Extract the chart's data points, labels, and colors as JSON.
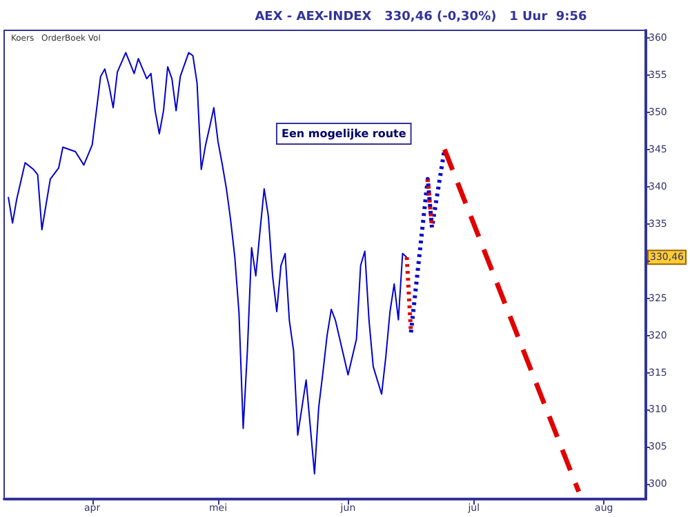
{
  "chart_data": {
    "type": "line",
    "title": "AEX - AEX-INDEX   330,46 (-0,30%)   1 Uur  9:56",
    "annotations": [
      "Koers",
      "OrderBoek Vol",
      "Een mogelijke route",
      "330,46"
    ],
    "xlim": [
      "--03-11",
      "--08-11"
    ],
    "xticks": [
      {
        "value": "--04-01",
        "label": "apr"
      },
      {
        "value": "--05-01",
        "label": "mei"
      },
      {
        "value": "--06-01",
        "label": "jun"
      },
      {
        "value": "--07-01",
        "label": "jul"
      },
      {
        "value": "--08-01",
        "label": "aug"
      }
    ],
    "ylim": [
      298,
      361
    ],
    "yticks": [
      300,
      305,
      310,
      315,
      320,
      325,
      {
        "value": 330,
        "label": null
      },
      335,
      340,
      345,
      350,
      355,
      360
    ],
    "marker": "none",
    "series": [
      {
        "color": "#0000cc",
        "line_style": "solid",
        "x": [
          "--03-12",
          "--03-13",
          "--03-14",
          "--03-16",
          "--03-18",
          "--03-19",
          "--03-20",
          "--03-22",
          "--03-24",
          "--03-25",
          "--03-28",
          "--03-30",
          "--04-01",
          "--04-02",
          "--04-03",
          "--04-04",
          "--04-05",
          "--04-06",
          "--04-07",
          "--04-09",
          "--04-11",
          "--04-12",
          "--04-14",
          "--04-15",
          "--04-16",
          "--04-17",
          "--04-18",
          "--04-19",
          "--04-20",
          "--04-21",
          "--04-22",
          "--04-24",
          "--04-25",
          "--04-26",
          "--04-27",
          "--04-28",
          "--04-29",
          "--04-30",
          "--05-01",
          "--05-02",
          "--05-03",
          "--05-04",
          "--05-05",
          "--05-06",
          "--05-07",
          "--05-08",
          "--05-09",
          "--05-10",
          "--05-11",
          "--05-12",
          "--05-13",
          "--05-14",
          "--05-15",
          "--05-16",
          "--05-17",
          "--05-18",
          "--05-19",
          "--05-20",
          "--05-22",
          "--05-24",
          "--05-25",
          "--05-26",
          "--05-27",
          "--05-28",
          "--05-29",
          "--06-01",
          "--06-03",
          "--06-04",
          "--06-05",
          "--06-06",
          "--06-07",
          "--06-09",
          "--06-10",
          "--06-11",
          "--06-12",
          "--06-13",
          "--06-14",
          "--06-15"
        ],
        "values": [
          338.6,
          335.1,
          338.3,
          343.2,
          342.3,
          341.6,
          334.2,
          341.0,
          342.5,
          345.3,
          344.7,
          342.9,
          345.6,
          350.2,
          354.8,
          355.8,
          353.6,
          350.6,
          355.4,
          358.0,
          355.2,
          357.2,
          354.5,
          355.2,
          350.2,
          347.1,
          350.2,
          356.1,
          354.5,
          350.2,
          354.8,
          358.0,
          357.6,
          353.9,
          342.3,
          345.5,
          348.0,
          350.6,
          346.0,
          343.0,
          339.7,
          335.5,
          330.5,
          323.0,
          307.5,
          318.0,
          331.8,
          328.0,
          334.0,
          339.7,
          336.0,
          328.0,
          323.2,
          329.4,
          331.0,
          322.0,
          318.0,
          306.6,
          314.0,
          301.4,
          310.3,
          315.0,
          320.0,
          323.5,
          322.0,
          314.7,
          319.5,
          329.4,
          331.3,
          322.0,
          315.8,
          312.1,
          317.1,
          323.2,
          326.9,
          322.1,
          331.0,
          330.5
        ]
      },
      {
        "color": "#0000cc",
        "line_style": "dotted",
        "x": [
          "--06-16",
          "--06-20",
          "--06-21",
          "--06-24"
        ],
        "values": [
          320.4,
          341.0,
          334.5,
          345.0
        ]
      },
      {
        "color": "#e00000",
        "line_style": "dotted",
        "x": [
          "--06-15",
          "--06-16",
          "--06-18",
          "--06-20",
          "--06-21"
        ],
        "values": [
          330.5,
          320.4,
          null,
          341.0,
          334.5
        ]
      },
      {
        "color": "#e00000",
        "line_style": "dashed",
        "x": [
          "--06-24",
          "--07-26"
        ],
        "values": [
          345.0,
          299.0
        ]
      }
    ]
  }
}
